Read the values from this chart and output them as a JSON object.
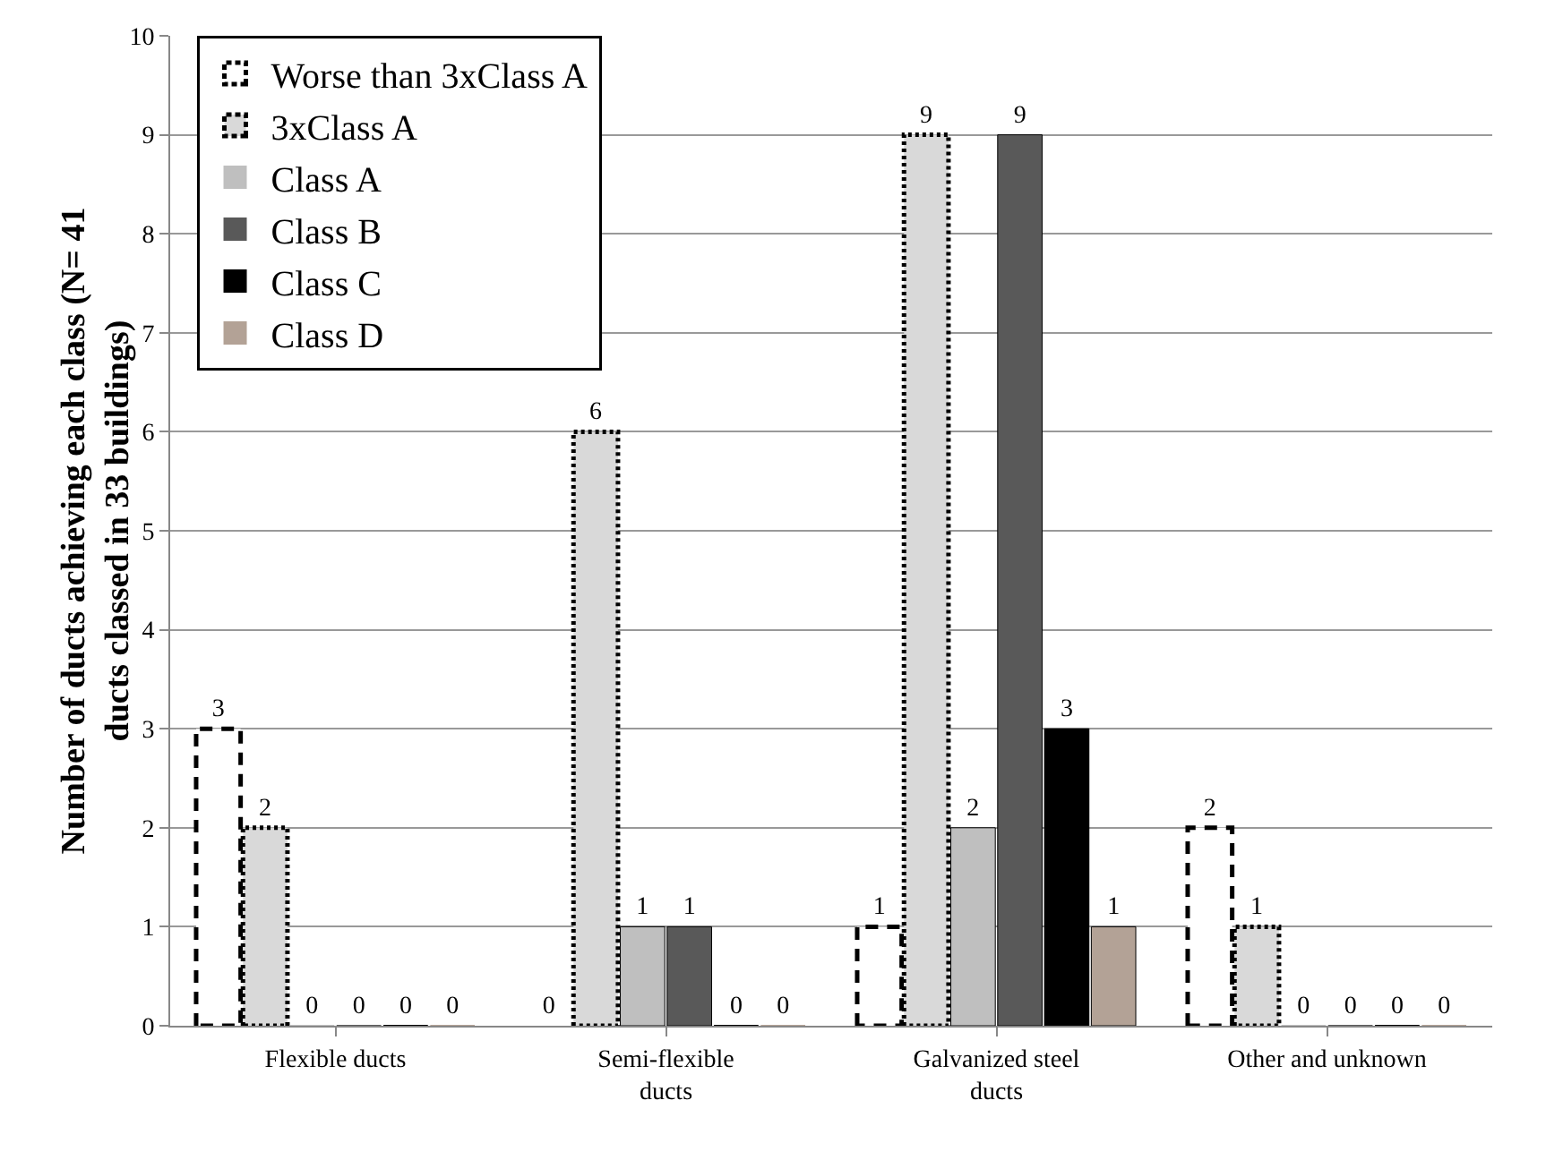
{
  "chart_data": {
    "type": "bar",
    "ylabel": "Number of ducts achieving each class (N= 41 ducts classed in 33 buildings)",
    "categories": [
      "Flexible ducts",
      "Semi-flexible ducts",
      "Galvanized steel ducts",
      "Other and unknown"
    ],
    "series": [
      {
        "name": "Worse than 3xClass A",
        "color": "#ffffff",
        "line_style": "dashed",
        "values": [
          3,
          0,
          1,
          2
        ]
      },
      {
        "name": "3xClass A",
        "color": "#d9d9d9",
        "line_style": "dotted",
        "values": [
          2,
          6,
          9,
          1
        ]
      },
      {
        "name": "Class A",
        "color": "#bfbfbf",
        "values": [
          0,
          1,
          2,
          0
        ]
      },
      {
        "name": "Class B",
        "color": "#595959",
        "values": [
          0,
          1,
          9,
          0
        ]
      },
      {
        "name": "Class C",
        "color": "#000000",
        "values": [
          0,
          0,
          3,
          0
        ]
      },
      {
        "name": "Class D",
        "color": "#b3a296",
        "values": [
          0,
          0,
          1,
          0
        ]
      }
    ],
    "ylim": [
      0,
      10
    ],
    "yticks": [
      0,
      1,
      2,
      3,
      4,
      5,
      6,
      7,
      8,
      9,
      10
    ],
    "grid": "y",
    "legend": "top left",
    "data_labels": true
  }
}
